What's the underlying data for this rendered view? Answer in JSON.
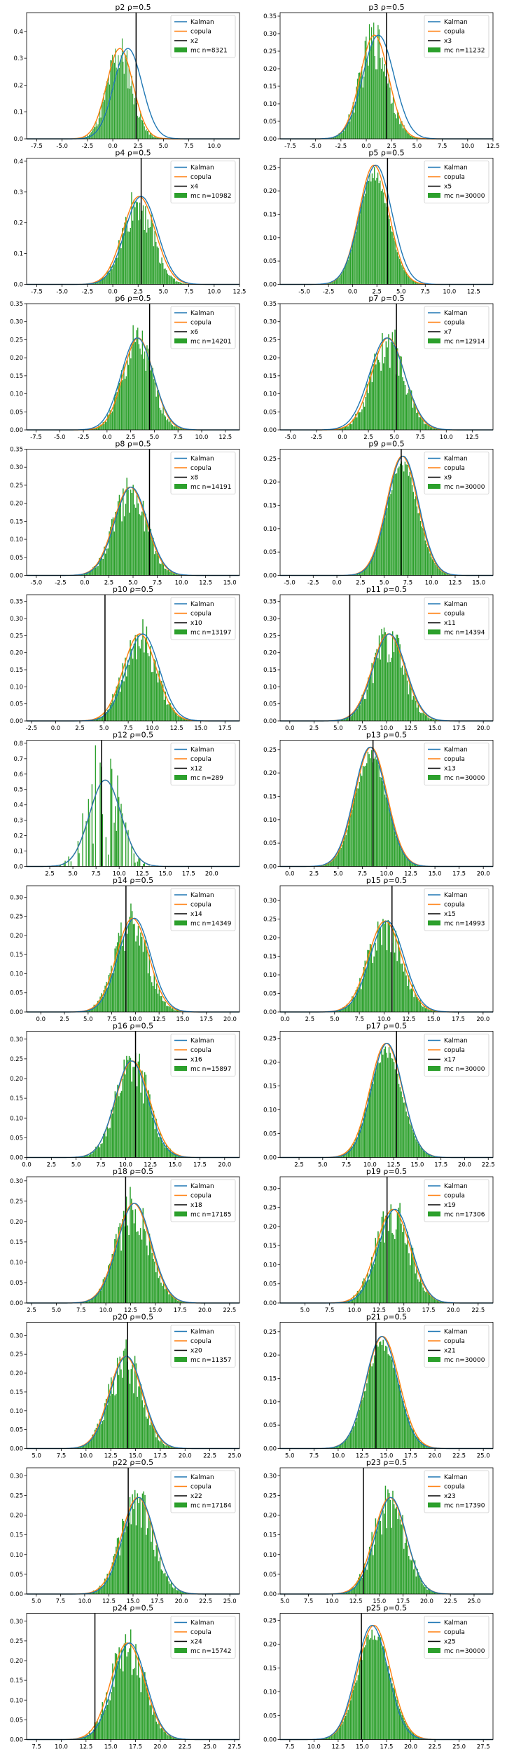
{
  "figure": {
    "rows": 12,
    "cols": 2,
    "legend_labels": {
      "kalman": "Kalman",
      "copula": "copula"
    },
    "colors": {
      "kalman": "#1f77b4",
      "copula": "#ff7f0e",
      "hist": "#2ca02c",
      "truth": "#000000",
      "axes": "#000000"
    }
  },
  "chart_data": [
    {
      "type": "bar",
      "title": "p2 ρ=0.5",
      "truth_label": "x2",
      "mc_label": "mc n=8321",
      "xlim": [
        -8.5,
        12.5
      ],
      "ylim": [
        0,
        0.47
      ],
      "xticks": [
        -7.5,
        -5.0,
        -2.5,
        0.0,
        2.5,
        5.0,
        7.5,
        10.0
      ],
      "yticks": [
        0.0,
        0.1,
        0.2,
        0.3,
        0.4
      ],
      "kalman": {
        "mean": 1.5,
        "sd": 1.35
      },
      "copula": {
        "mean": 0.7,
        "sd": 1.3
      },
      "truth_x": 2.3,
      "hist": {
        "mean": 0.7,
        "sd": 1.25,
        "peak": 0.33,
        "n": 8321
      },
      "legend": "top-right"
    },
    {
      "type": "bar",
      "title": "p3 ρ=0.5",
      "truth_label": "x3",
      "mc_label": "mc n=11232",
      "xlim": [
        -8.5,
        12.5
      ],
      "ylim": [
        0,
        0.36
      ],
      "xticks": [
        -7.5,
        -5.0,
        -2.5,
        0.0,
        2.5,
        5.0,
        7.5,
        10.0,
        12.5
      ],
      "yticks": [
        0.0,
        0.05,
        0.1,
        0.15,
        0.2,
        0.25,
        0.3,
        0.35
      ],
      "kalman": {
        "mean": 1.2,
        "sd": 1.5
      },
      "copula": {
        "mean": 0.8,
        "sd": 1.4
      },
      "truth_x": 2.0,
      "hist": {
        "mean": 0.8,
        "sd": 1.4,
        "peak": 0.29,
        "n": 11232
      },
      "legend": "top-right"
    },
    {
      "type": "bar",
      "title": "p4 ρ=0.5",
      "truth_label": "x4",
      "mc_label": "mc n=10982",
      "xlim": [
        -8.5,
        12.5
      ],
      "ylim": [
        0,
        0.41
      ],
      "xticks": [
        -7.5,
        -5.0,
        -2.5,
        0.0,
        2.5,
        5.0,
        7.5,
        10.0,
        12.5
      ],
      "yticks": [
        0.0,
        0.1,
        0.2,
        0.3,
        0.4
      ],
      "kalman": {
        "mean": 2.8,
        "sd": 1.55
      },
      "copula": {
        "mean": 2.6,
        "sd": 1.6
      },
      "truth_x": 2.8,
      "hist": {
        "mean": 2.5,
        "sd": 1.5,
        "peak": 0.28,
        "n": 10982
      },
      "legend": "top-right"
    },
    {
      "type": "bar",
      "title": "p5 ρ=0.5",
      "truth_label": "x5",
      "mc_label": "mc n=30000",
      "xlim": [
        -7.5,
        14.5
      ],
      "ylim": [
        0,
        0.27
      ],
      "xticks": [
        -5.0,
        -2.5,
        0.0,
        2.5,
        5.0,
        7.5,
        10.0,
        12.5
      ],
      "yticks": [
        0.0,
        0.05,
        0.1,
        0.15,
        0.2,
        0.25
      ],
      "kalman": {
        "mean": 2.4,
        "sd": 1.6
      },
      "copula": {
        "mean": 2.2,
        "sd": 1.55
      },
      "truth_x": 3.6,
      "hist": {
        "mean": 2.2,
        "sd": 1.55,
        "peak": 0.25,
        "n": 30000
      },
      "legend": "top-right"
    },
    {
      "type": "bar",
      "title": "p6 ρ=0.5",
      "truth_label": "x6",
      "mc_label": "mc n=14201",
      "xlim": [
        -8.5,
        14.0
      ],
      "ylim": [
        0,
        0.35
      ],
      "xticks": [
        -7.5,
        -5.0,
        -2.5,
        0.0,
        2.5,
        5.0,
        7.5,
        10.0,
        12.5
      ],
      "yticks": [
        0.0,
        0.05,
        0.1,
        0.15,
        0.2,
        0.25,
        0.3,
        0.35
      ],
      "kalman": {
        "mean": 3.2,
        "sd": 1.65
      },
      "copula": {
        "mean": 3.3,
        "sd": 1.6
      },
      "truth_x": 4.5,
      "hist": {
        "mean": 3.2,
        "sd": 1.6,
        "peak": 0.25,
        "n": 14201
      },
      "legend": "top-right"
    },
    {
      "type": "bar",
      "title": "p7 ρ=0.5",
      "truth_label": "x7",
      "mc_label": "mc n=12914",
      "xlim": [
        -6.0,
        14.5
      ],
      "ylim": [
        0,
        0.35
      ],
      "xticks": [
        -5.0,
        -2.5,
        0.0,
        2.5,
        5.0,
        7.5,
        10.0,
        12.5
      ],
      "yticks": [
        0.0,
        0.05,
        0.1,
        0.15,
        0.2,
        0.25,
        0.3,
        0.35
      ],
      "kalman": {
        "mean": 4.3,
        "sd": 1.65
      },
      "copula": {
        "mean": 4.4,
        "sd": 1.6
      },
      "truth_x": 5.2,
      "hist": {
        "mean": 4.4,
        "sd": 1.6,
        "peak": 0.25,
        "n": 12914
      },
      "legend": "top-right"
    },
    {
      "type": "bar",
      "title": "p8 ρ=0.5",
      "truth_label": "x8",
      "mc_label": "mc n=14191",
      "xlim": [
        -6.0,
        16.0
      ],
      "ylim": [
        0,
        0.35
      ],
      "xticks": [
        -5.0,
        -2.5,
        0.0,
        2.5,
        5.0,
        7.5,
        10.0,
        12.5,
        15.0
      ],
      "yticks": [
        0.0,
        0.05,
        0.1,
        0.15,
        0.2,
        0.25,
        0.3,
        0.35
      ],
      "kalman": {
        "mean": 4.8,
        "sd": 1.65
      },
      "copula": {
        "mean": 4.7,
        "sd": 1.7
      },
      "truth_x": 6.7,
      "hist": {
        "mean": 4.7,
        "sd": 1.7,
        "peak": 0.24,
        "n": 14191
      },
      "legend": "top-right"
    },
    {
      "type": "bar",
      "title": "p9 ρ=0.5",
      "truth_label": "x9",
      "mc_label": "mc n=30000",
      "xlim": [
        -6.0,
        16.5
      ],
      "ylim": [
        0,
        0.27
      ],
      "xticks": [
        -5.0,
        -2.5,
        0.0,
        2.5,
        5.0,
        7.5,
        10.0,
        12.5,
        15.0
      ],
      "yticks": [
        0.0,
        0.05,
        0.1,
        0.15,
        0.2,
        0.25
      ],
      "kalman": {
        "mean": 7.0,
        "sd": 1.6
      },
      "copula": {
        "mean": 6.9,
        "sd": 1.65
      },
      "truth_x": 6.8,
      "hist": {
        "mean": 6.9,
        "sd": 1.65,
        "peak": 0.25,
        "n": 30000
      },
      "legend": "top-right"
    },
    {
      "type": "bar",
      "title": "p10 ρ=0.5",
      "truth_label": "x10",
      "mc_label": "mc n=13197",
      "xlim": [
        -3.0,
        19.0
      ],
      "ylim": [
        0,
        0.37
      ],
      "xticks": [
        -2.5,
        0.0,
        2.5,
        5.0,
        7.5,
        10.0,
        12.5,
        15.0,
        17.5
      ],
      "yticks": [
        0.0,
        0.05,
        0.1,
        0.15,
        0.2,
        0.25,
        0.3,
        0.35
      ],
      "kalman": {
        "mean": 9.0,
        "sd": 1.65
      },
      "copula": {
        "mean": 8.7,
        "sd": 1.7
      },
      "truth_x": 5.1,
      "hist": {
        "mean": 8.7,
        "sd": 1.7,
        "peak": 0.25,
        "n": 13197
      },
      "legend": "top-right"
    },
    {
      "type": "bar",
      "title": "p11 ρ=0.5",
      "truth_label": "x11",
      "mc_label": "mc n=14394",
      "xlim": [
        -1.0,
        21.0
      ],
      "ylim": [
        0,
        0.37
      ],
      "xticks": [
        0.0,
        2.5,
        5.0,
        7.5,
        10.0,
        12.5,
        15.0,
        17.5,
        20.0
      ],
      "yticks": [
        0.0,
        0.05,
        0.1,
        0.15,
        0.2,
        0.25,
        0.3,
        0.35
      ],
      "kalman": {
        "mean": 10.3,
        "sd": 1.65
      },
      "copula": {
        "mean": 10.2,
        "sd": 1.7
      },
      "truth_x": 6.2,
      "hist": {
        "mean": 10.2,
        "sd": 1.65,
        "peak": 0.25,
        "n": 14394
      },
      "legend": "top-right"
    },
    {
      "type": "bar",
      "title": "p12 ρ=0.5",
      "truth_label": "x12",
      "mc_label": "mc n=289",
      "xlim": [
        0.0,
        23.0
      ],
      "ylim": [
        0,
        0.82
      ],
      "xticks": [
        2.5,
        5.0,
        7.5,
        10.0,
        12.5,
        15.0,
        17.5,
        20.0
      ],
      "yticks": [
        0.0,
        0.1,
        0.2,
        0.3,
        0.4,
        0.5,
        0.6,
        0.7,
        0.8
      ],
      "kalman": {
        "mean": 8.5,
        "sd": 1.65
      },
      "copula": {
        "mean": 8.5,
        "sd": 1.7
      },
      "truth_x": 8.1,
      "hist": {
        "mean": 8.4,
        "sd": 1.65,
        "peak": 0.55,
        "n": 289
      },
      "legend": "top-right"
    },
    {
      "type": "bar",
      "title": "p13 ρ=0.5",
      "truth_label": "x13",
      "mc_label": "mc n=30000",
      "xlim": [
        -1.0,
        21.0
      ],
      "ylim": [
        0,
        0.27
      ],
      "xticks": [
        0.0,
        2.5,
        5.0,
        7.5,
        10.0,
        12.5,
        15.0,
        17.5,
        20.0
      ],
      "yticks": [
        0.0,
        0.05,
        0.1,
        0.15,
        0.2,
        0.25
      ],
      "kalman": {
        "mean": 8.3,
        "sd": 1.6
      },
      "copula": {
        "mean": 8.4,
        "sd": 1.65
      },
      "truth_x": 8.6,
      "hist": {
        "mean": 8.4,
        "sd": 1.65,
        "peak": 0.25,
        "n": 30000
      },
      "legend": "top-right"
    },
    {
      "type": "bar",
      "title": "p14 ρ=0.5",
      "truth_label": "x14",
      "mc_label": "mc n=14349",
      "xlim": [
        -1.5,
        21.0
      ],
      "ylim": [
        0,
        0.33
      ],
      "xticks": [
        0.0,
        2.5,
        5.0,
        7.5,
        10.0,
        12.5,
        15.0,
        17.5,
        20.0
      ],
      "yticks": [
        0.0,
        0.05,
        0.1,
        0.15,
        0.2,
        0.25,
        0.3
      ],
      "kalman": {
        "mean": 9.9,
        "sd": 1.65
      },
      "copula": {
        "mean": 9.7,
        "sd": 1.7
      },
      "truth_x": 9.0,
      "hist": {
        "mean": 9.6,
        "sd": 1.7,
        "peak": 0.24,
        "n": 14349
      },
      "legend": "top-right"
    },
    {
      "type": "bar",
      "title": "p15 ρ=0.5",
      "truth_label": "x15",
      "mc_label": "mc n=14993",
      "xlim": [
        -0.5,
        21.0
      ],
      "ylim": [
        0,
        0.34
      ],
      "xticks": [
        0.0,
        2.5,
        5.0,
        7.5,
        10.0,
        12.5,
        15.0,
        17.5,
        20.0
      ],
      "yticks": [
        0.0,
        0.05,
        0.1,
        0.15,
        0.2,
        0.25,
        0.3
      ],
      "kalman": {
        "mean": 10.3,
        "sd": 1.65
      },
      "copula": {
        "mean": 10.1,
        "sd": 1.7
      },
      "truth_x": 10.8,
      "hist": {
        "mean": 10.1,
        "sd": 1.7,
        "peak": 0.24,
        "n": 14993
      },
      "legend": "top-right"
    },
    {
      "type": "bar",
      "title": "p16 ρ=0.5",
      "truth_label": "x16",
      "mc_label": "mc n=15897",
      "xlim": [
        0.0,
        21.5
      ],
      "ylim": [
        0,
        0.32
      ],
      "xticks": [
        0.0,
        2.5,
        5.0,
        7.5,
        10.0,
        12.5,
        15.0,
        17.5,
        20.0
      ],
      "yticks": [
        0.0,
        0.05,
        0.1,
        0.15,
        0.2,
        0.25,
        0.3
      ],
      "kalman": {
        "mean": 10.6,
        "sd": 1.6
      },
      "copula": {
        "mean": 10.7,
        "sd": 1.7
      },
      "truth_x": 11.0,
      "hist": {
        "mean": 10.7,
        "sd": 1.7,
        "peak": 0.24,
        "n": 15897
      },
      "legend": "top-right"
    },
    {
      "type": "bar",
      "title": "p17 ρ=0.5",
      "truth_label": "x17",
      "mc_label": "mc n=30000",
      "xlim": [
        0.5,
        23.0
      ],
      "ylim": [
        0,
        0.265
      ],
      "xticks": [
        2.5,
        5.0,
        7.5,
        10.0,
        12.5,
        15.0,
        17.5,
        20.0,
        22.5
      ],
      "yticks": [
        0.0,
        0.05,
        0.1,
        0.15,
        0.2,
        0.25
      ],
      "kalman": {
        "mean": 11.8,
        "sd": 1.6
      },
      "copula": {
        "mean": 11.7,
        "sd": 1.7
      },
      "truth_x": 12.8,
      "hist": {
        "mean": 11.7,
        "sd": 1.7,
        "peak": 0.235,
        "n": 30000
      },
      "legend": "top-right"
    },
    {
      "type": "bar",
      "title": "p18 ρ=0.5",
      "truth_label": "x18",
      "mc_label": "mc n=17185",
      "xlim": [
        2.0,
        23.5
      ],
      "ylim": [
        0,
        0.31
      ],
      "xticks": [
        2.5,
        5.0,
        7.5,
        10.0,
        12.5,
        15.0,
        17.5,
        20.0,
        22.5
      ],
      "yticks": [
        0.0,
        0.05,
        0.1,
        0.15,
        0.2,
        0.25,
        0.3
      ],
      "kalman": {
        "mean": 12.9,
        "sd": 1.65
      },
      "copula": {
        "mean": 12.8,
        "sd": 1.7
      },
      "truth_x": 12.0,
      "hist": {
        "mean": 12.8,
        "sd": 1.7,
        "peak": 0.24,
        "n": 17185
      },
      "legend": "top-right"
    },
    {
      "type": "bar",
      "title": "p19 ρ=0.5",
      "truth_label": "x19",
      "mc_label": "mc n=17306",
      "xlim": [
        2.5,
        24.0
      ],
      "ylim": [
        0,
        0.33
      ],
      "xticks": [
        5.0,
        7.5,
        10.0,
        12.5,
        15.0,
        17.5,
        20.0,
        22.5
      ],
      "yticks": [
        0.0,
        0.05,
        0.1,
        0.15,
        0.2,
        0.25,
        0.3
      ],
      "kalman": {
        "mean": 14.1,
        "sd": 1.6
      },
      "copula": {
        "mean": 13.9,
        "sd": 1.7
      },
      "truth_x": 13.3,
      "hist": {
        "mean": 13.9,
        "sd": 1.7,
        "peak": 0.24,
        "n": 17306
      },
      "legend": "top-right"
    },
    {
      "type": "bar",
      "title": "p20 ρ=0.5",
      "truth_label": "x20",
      "mc_label": "mc n=11357",
      "xlim": [
        4.0,
        25.5
      ],
      "ylim": [
        0,
        0.335
      ],
      "xticks": [
        5.0,
        7.5,
        10.0,
        12.5,
        15.0,
        17.5,
        20.0,
        22.5,
        25.0
      ],
      "yticks": [
        0.0,
        0.05,
        0.1,
        0.15,
        0.2,
        0.25,
        0.3
      ],
      "kalman": {
        "mean": 14.1,
        "sd": 1.6
      },
      "copula": {
        "mean": 14.0,
        "sd": 1.65
      },
      "truth_x": 14.2,
      "hist": {
        "mean": 14.0,
        "sd": 1.65,
        "peak": 0.24,
        "n": 11357
      },
      "legend": "top-right"
    },
    {
      "type": "bar",
      "title": "p21 ρ=0.5",
      "truth_label": "x21",
      "mc_label": "mc n=30000",
      "xlim": [
        4.0,
        26.0
      ],
      "ylim": [
        0,
        0.27
      ],
      "xticks": [
        5.0,
        7.5,
        10.0,
        12.5,
        15.0,
        17.5,
        20.0,
        22.5,
        25.0
      ],
      "yticks": [
        0.0,
        0.05,
        0.1,
        0.15,
        0.2,
        0.25
      ],
      "kalman": {
        "mean": 14.5,
        "sd": 1.6
      },
      "copula": {
        "mean": 14.6,
        "sd": 1.7
      },
      "truth_x": 13.9,
      "hist": {
        "mean": 14.6,
        "sd": 1.7,
        "peak": 0.235,
        "n": 30000
      },
      "legend": "top-right"
    },
    {
      "type": "bar",
      "title": "p22 ρ=0.5",
      "truth_label": "x22",
      "mc_label": "mc n=17184",
      "xlim": [
        4.0,
        26.0
      ],
      "ylim": [
        0,
        0.32
      ],
      "xticks": [
        5.0,
        7.5,
        10.0,
        12.5,
        15.0,
        17.5,
        20.0,
        22.5,
        25.0
      ],
      "yticks": [
        0.0,
        0.05,
        0.1,
        0.15,
        0.2,
        0.25,
        0.3
      ],
      "kalman": {
        "mean": 15.6,
        "sd": 1.6
      },
      "copula": {
        "mean": 15.5,
        "sd": 1.7
      },
      "truth_x": 14.5,
      "hist": {
        "mean": 15.4,
        "sd": 1.7,
        "peak": 0.24,
        "n": 17184
      },
      "legend": "top-right"
    },
    {
      "type": "bar",
      "title": "p23 ρ=0.5",
      "truth_label": "x23",
      "mc_label": "mc n=17390",
      "xlim": [
        4.5,
        27.0
      ],
      "ylim": [
        0,
        0.32
      ],
      "xticks": [
        5.0,
        7.5,
        10.0,
        12.5,
        15.0,
        17.5,
        20.0,
        22.5,
        25.0
      ],
      "yticks": [
        0.0,
        0.05,
        0.1,
        0.15,
        0.2,
        0.25,
        0.3
      ],
      "kalman": {
        "mean": 16.2,
        "sd": 1.6
      },
      "copula": {
        "mean": 16.1,
        "sd": 1.7
      },
      "truth_x": 13.3,
      "hist": {
        "mean": 16.1,
        "sd": 1.7,
        "peak": 0.24,
        "n": 17390
      },
      "legend": "top-right"
    },
    {
      "type": "bar",
      "title": "p24 ρ=0.5",
      "truth_label": "x24",
      "mc_label": "mc n=15742",
      "xlim": [
        6.5,
        28.0
      ],
      "ylim": [
        0,
        0.32
      ],
      "xticks": [
        7.5,
        10.0,
        12.5,
        15.0,
        17.5,
        20.0,
        22.5,
        25.0,
        27.5
      ],
      "yticks": [
        0.0,
        0.05,
        0.1,
        0.15,
        0.2,
        0.25,
        0.3
      ],
      "kalman": {
        "mean": 16.9,
        "sd": 1.6
      },
      "copula": {
        "mean": 16.7,
        "sd": 1.7
      },
      "truth_x": 13.4,
      "hist": {
        "mean": 16.7,
        "sd": 1.7,
        "peak": 0.24,
        "n": 15742
      },
      "legend": "top-right"
    },
    {
      "type": "bar",
      "title": "p25 ρ=0.5",
      "truth_label": "x25",
      "mc_label": "mc n=30000",
      "xlim": [
        6.5,
        28.5
      ],
      "ylim": [
        0,
        0.265
      ],
      "xticks": [
        7.5,
        10.0,
        12.5,
        15.0,
        17.5,
        20.0,
        22.5,
        25.0,
        27.5
      ],
      "yticks": [
        0.0,
        0.05,
        0.1,
        0.15,
        0.2,
        0.25
      ],
      "kalman": {
        "mean": 16.0,
        "sd": 1.6
      },
      "copula": {
        "mean": 16.2,
        "sd": 1.7
      },
      "truth_x": 14.9,
      "hist": {
        "mean": 16.2,
        "sd": 1.7,
        "peak": 0.235,
        "n": 30000
      },
      "legend": "top-right"
    }
  ]
}
